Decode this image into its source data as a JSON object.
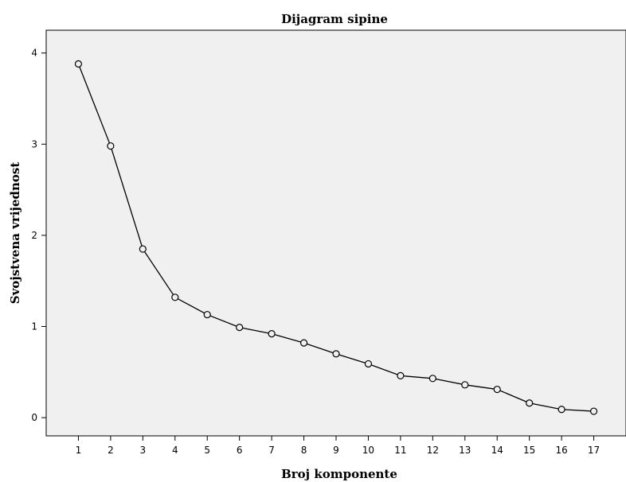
{
  "chart_data": {
    "type": "line",
    "title": "Dijagram sipine",
    "xlabel": "Broj komponente",
    "ylabel": "Svojstvena vrijednost",
    "x": [
      1,
      2,
      3,
      4,
      5,
      6,
      7,
      8,
      9,
      10,
      11,
      12,
      13,
      14,
      15,
      16,
      17
    ],
    "values": [
      3.88,
      2.98,
      1.85,
      1.32,
      1.13,
      0.99,
      0.92,
      0.82,
      0.7,
      0.59,
      0.46,
      0.43,
      0.36,
      0.31,
      0.16,
      0.09,
      0.07
    ],
    "xlim": [
      0,
      18
    ],
    "ylim": [
      -0.2,
      4.25
    ],
    "yticks": [
      0,
      1,
      2,
      3,
      4
    ],
    "grid": false,
    "marker": "open-circle",
    "colors": {
      "plot_background": "#f0f0f0",
      "line": "#000000",
      "marker_fill": "#f0f0f0"
    }
  }
}
